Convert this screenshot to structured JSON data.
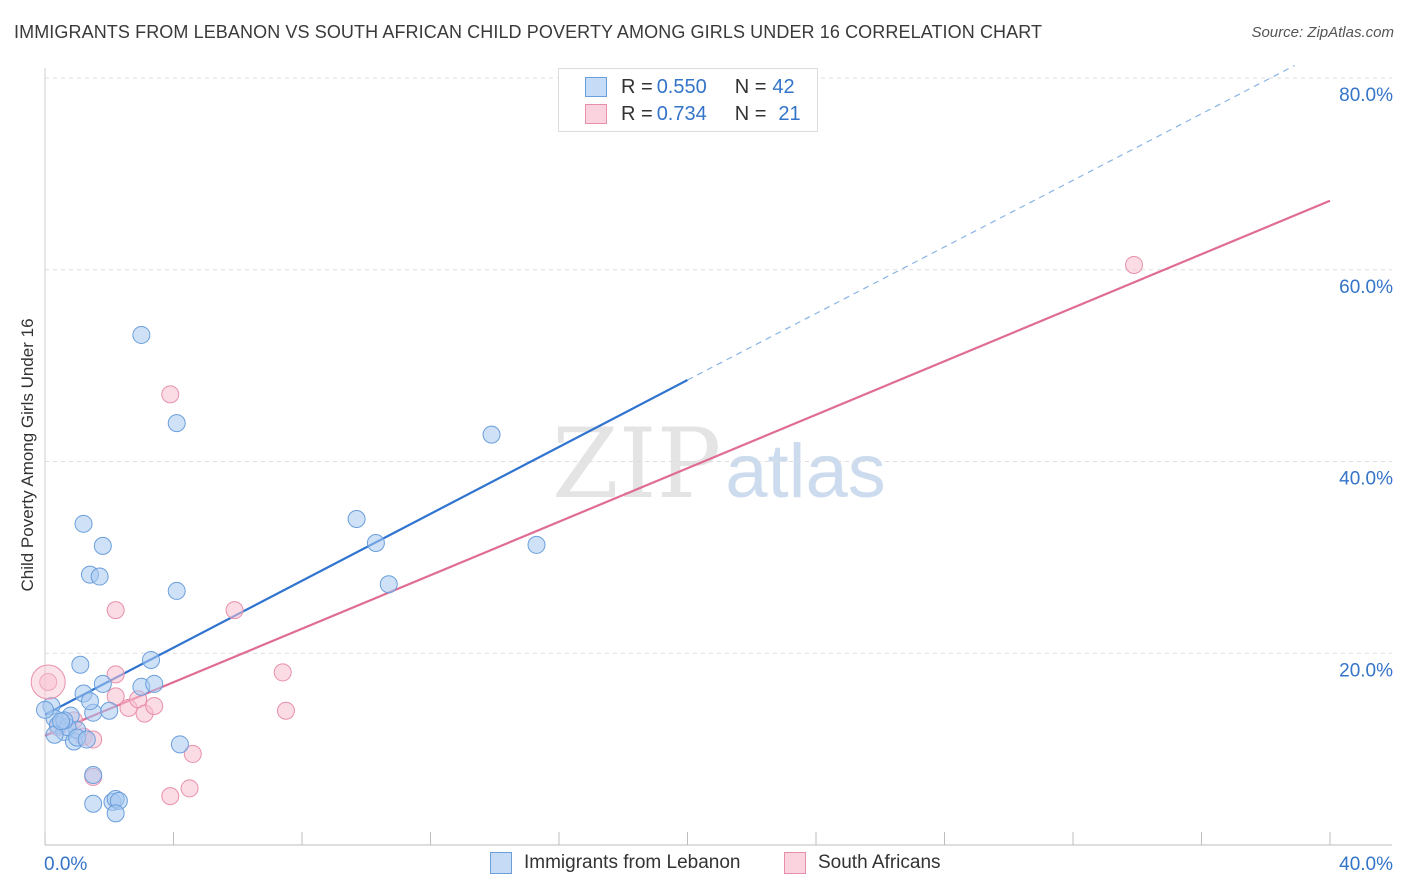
{
  "header": {
    "title": "IMMIGRANTS FROM LEBANON VS SOUTH AFRICAN CHILD POVERTY AMONG GIRLS UNDER 16 CORRELATION CHART",
    "source": "Source: ZipAtlas.com"
  },
  "watermark": {
    "zip": "ZIP",
    "atlas": "atlas"
  },
  "stats": [
    {
      "r_label": "R = ",
      "r_value": "0.550",
      "n_label": "N = ",
      "n_value": "42"
    },
    {
      "r_label": "R = ",
      "r_value": "0.734",
      "n_label": "N = ",
      "n_value": "21"
    }
  ],
  "legend": {
    "series1": "Immigrants from Lebanon",
    "series2": "South Africans"
  },
  "colors": {
    "blue_fill": "#a8c8f0",
    "blue_stroke": "#6a9fdc",
    "blue_line": "#2f74d0",
    "pink_fill": "#f8c0d0",
    "pink_stroke": "#e890aa",
    "pink_line": "#e06c95",
    "axis_label": "#3474c9",
    "grid": "#dddddd"
  },
  "chart_data": {
    "type": "scatter",
    "title": "IMMIGRANTS FROM LEBANON VS SOUTH AFRICAN CHILD POVERTY AMONG GIRLS UNDER 16 CORRELATION CHART",
    "xlabel": "",
    "ylabel": "Child Poverty Among Girls Under 16",
    "xlim": [
      0,
      40
    ],
    "ylim": [
      0,
      80
    ],
    "x_tick_labels": [
      {
        "value": 0,
        "label": "0.0%"
      },
      {
        "value": 40,
        "label": "40.0%"
      }
    ],
    "y_tick_labels": [
      {
        "value": 20,
        "label": "20.0%"
      },
      {
        "value": 40,
        "label": "40.0%"
      },
      {
        "value": 60,
        "label": "60.0%"
      },
      {
        "value": 80,
        "label": "80.0%"
      }
    ],
    "x_minor_ticks": [
      0,
      4,
      8,
      12,
      16,
      20,
      24,
      28,
      32,
      36,
      40
    ],
    "y_gridlines": [
      20,
      40,
      60,
      80
    ],
    "series": [
      {
        "name": "Immigrants from Lebanon",
        "color": "blue",
        "points": [
          [
            0.2,
            14.5
          ],
          [
            0.3,
            13.2
          ],
          [
            0.4,
            12.5
          ],
          [
            0.6,
            11.8
          ],
          [
            0.8,
            13.5
          ],
          [
            0.9,
            10.8
          ],
          [
            1.0,
            12.0
          ],
          [
            0.7,
            12.3
          ],
          [
            1.1,
            18.8
          ],
          [
            1.2,
            15.8
          ],
          [
            1.0,
            11.2
          ],
          [
            1.3,
            11.0
          ],
          [
            1.5,
            13.8
          ],
          [
            1.4,
            15.0
          ],
          [
            1.2,
            33.5
          ],
          [
            1.4,
            28.2
          ],
          [
            1.7,
            28.0
          ],
          [
            1.8,
            31.2
          ],
          [
            1.8,
            16.8
          ],
          [
            2.0,
            14.0
          ],
          [
            2.1,
            4.5
          ],
          [
            2.2,
            4.8
          ],
          [
            2.3,
            4.6
          ],
          [
            1.5,
            7.3
          ],
          [
            1.5,
            4.3
          ],
          [
            2.2,
            3.3
          ],
          [
            3.0,
            53.2
          ],
          [
            3.0,
            16.5
          ],
          [
            3.4,
            16.8
          ],
          [
            3.3,
            19.3
          ],
          [
            4.1,
            44.0
          ],
          [
            4.1,
            26.5
          ],
          [
            4.2,
            10.5
          ],
          [
            9.7,
            34.0
          ],
          [
            10.3,
            31.5
          ],
          [
            10.7,
            27.2
          ],
          [
            13.9,
            42.8
          ],
          [
            15.3,
            31.3
          ],
          [
            0.0,
            14.1
          ],
          [
            0.6,
            13.0
          ],
          [
            0.3,
            11.5
          ],
          [
            0.5,
            12.9
          ]
        ],
        "trendline": {
          "x": [
            0,
            20
          ],
          "y": [
            13.6,
            48.5
          ]
        },
        "trendline_extension": {
          "x": [
            20,
            38.9
          ],
          "y": [
            48.5,
            81.3
          ]
        }
      },
      {
        "name": "South Africans",
        "color": "pink",
        "points": [
          [
            0.1,
            17.0
          ],
          [
            0.4,
            12.3
          ],
          [
            0.9,
            13.0
          ],
          [
            1.2,
            11.3
          ],
          [
            1.5,
            11.0
          ],
          [
            1.5,
            7.1
          ],
          [
            2.2,
            17.8
          ],
          [
            2.2,
            24.5
          ],
          [
            2.2,
            15.5
          ],
          [
            2.6,
            14.3
          ],
          [
            2.9,
            15.2
          ],
          [
            3.1,
            13.7
          ],
          [
            3.4,
            14.5
          ],
          [
            3.9,
            47.0
          ],
          [
            3.9,
            5.1
          ],
          [
            4.5,
            5.9
          ],
          [
            4.6,
            9.5
          ],
          [
            5.9,
            24.5
          ],
          [
            7.4,
            18.0
          ],
          [
            7.5,
            14.0
          ],
          [
            33.9,
            60.5
          ]
        ],
        "trendline": {
          "x": [
            0,
            40
          ],
          "y": [
            11.4,
            67.2
          ]
        }
      }
    ]
  }
}
